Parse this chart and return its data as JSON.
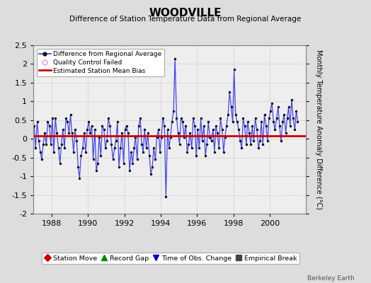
{
  "title": "WOODVILLE",
  "subtitle": "Difference of Station Temperature Data from Regional Average",
  "ylabel_right": "Monthly Temperature Anomaly Difference (°C)",
  "xlim": [
    1987.0,
    2002.0
  ],
  "ylim": [
    -2.0,
    2.5
  ],
  "yticks": [
    -2,
    -1.5,
    -1,
    -0.5,
    0,
    0.5,
    1,
    1.5,
    2,
    2.5
  ],
  "ytick_labels": [
    "-2",
    "-1.5",
    "-1",
    "-0.5",
    "0",
    "0.5",
    "1",
    "1.5",
    "2",
    "2.5"
  ],
  "xticks": [
    1988,
    1990,
    1992,
    1994,
    1996,
    1998,
    2000
  ],
  "bias_line_y": 0.08,
  "bias_line_color": "#cc0000",
  "line_color": "#4444ee",
  "dot_color": "#111111",
  "background_color": "#dddddd",
  "plot_bg_color": "#eeeeee",
  "grid_color": "#bbbbbb",
  "footer": "Berkeley Earth",
  "legend1_entries": [
    {
      "label": "Difference from Regional Average"
    },
    {
      "label": "Quality Control Failed"
    },
    {
      "label": "Estimated Station Mean Bias"
    }
  ],
  "legend2_entries": [
    {
      "label": "Station Move",
      "marker": "D",
      "color": "#cc0000"
    },
    {
      "label": "Record Gap",
      "marker": "^",
      "color": "#008800"
    },
    {
      "label": "Time of Obs. Change",
      "marker": "v",
      "color": "#0000cc"
    },
    {
      "label": "Empirical Break",
      "marker": "s",
      "color": "#444444"
    }
  ],
  "time_series": [
    1987.04,
    1987.12,
    1987.21,
    1987.29,
    1987.38,
    1987.46,
    1987.54,
    1987.62,
    1987.71,
    1987.79,
    1987.88,
    1987.96,
    1988.04,
    1988.12,
    1988.21,
    1988.29,
    1988.38,
    1988.46,
    1988.54,
    1988.62,
    1988.71,
    1988.79,
    1988.88,
    1988.96,
    1989.04,
    1989.12,
    1989.21,
    1989.29,
    1989.38,
    1989.46,
    1989.54,
    1989.62,
    1989.71,
    1989.79,
    1989.88,
    1989.96,
    1990.04,
    1990.12,
    1990.21,
    1990.29,
    1990.38,
    1990.46,
    1990.54,
    1990.62,
    1990.71,
    1990.79,
    1990.88,
    1990.96,
    1991.04,
    1991.12,
    1991.21,
    1991.29,
    1991.38,
    1991.46,
    1991.54,
    1991.62,
    1991.71,
    1991.79,
    1991.88,
    1991.96,
    1992.04,
    1992.12,
    1992.21,
    1992.29,
    1992.38,
    1992.46,
    1992.54,
    1992.62,
    1992.71,
    1992.79,
    1992.88,
    1992.96,
    1993.04,
    1993.12,
    1993.21,
    1993.29,
    1993.38,
    1993.46,
    1993.54,
    1993.62,
    1993.71,
    1993.79,
    1993.88,
    1993.96,
    1994.04,
    1994.12,
    1994.21,
    1994.29,
    1994.38,
    1994.46,
    1994.54,
    1994.62,
    1994.71,
    1994.79,
    1994.88,
    1994.96,
    1995.04,
    1995.12,
    1995.21,
    1995.29,
    1995.38,
    1995.46,
    1995.54,
    1995.62,
    1995.71,
    1995.79,
    1995.88,
    1995.96,
    1996.04,
    1996.12,
    1996.21,
    1996.29,
    1996.38,
    1996.46,
    1996.54,
    1996.62,
    1996.71,
    1996.79,
    1996.88,
    1996.96,
    1997.04,
    1997.12,
    1997.21,
    1997.29,
    1997.38,
    1997.46,
    1997.54,
    1997.62,
    1997.71,
    1997.79,
    1997.88,
    1997.96,
    1998.04,
    1998.12,
    1998.21,
    1998.29,
    1998.38,
    1998.46,
    1998.54,
    1998.62,
    1998.71,
    1998.79,
    1998.88,
    1998.96,
    1999.04,
    1999.12,
    1999.21,
    1999.29,
    1999.38,
    1999.46,
    1999.54,
    1999.62,
    1999.71,
    1999.79,
    1999.88,
    1999.96,
    2000.04,
    2000.12,
    2000.21,
    2000.29,
    2000.38,
    2000.46,
    2000.54,
    2000.62,
    2000.71,
    2000.79,
    2000.88,
    2000.96,
    2001.04,
    2001.12,
    2001.21,
    2001.29,
    2001.38,
    2001.46,
    2001.54
  ],
  "values": [
    0.35,
    -0.25,
    0.45,
    -0.05,
    -0.35,
    -0.55,
    -0.15,
    0.15,
    -0.15,
    0.45,
    0.35,
    -0.15,
    0.55,
    -0.35,
    0.55,
    0.15,
    -0.25,
    -0.65,
    -0.15,
    0.25,
    -0.25,
    0.55,
    0.45,
    0.15,
    0.65,
    0.15,
    -0.35,
    0.25,
    -0.05,
    -0.75,
    -1.05,
    -0.45,
    -0.25,
    0.15,
    -0.35,
    0.25,
    0.45,
    0.15,
    0.35,
    -0.55,
    0.25,
    -0.85,
    -0.65,
    0.05,
    -0.45,
    0.35,
    0.25,
    -0.25,
    -0.05,
    0.55,
    0.35,
    -0.15,
    -0.55,
    -0.25,
    -0.05,
    0.45,
    -0.75,
    -0.25,
    0.15,
    -0.65,
    0.25,
    0.35,
    0.15,
    -0.85,
    -0.35,
    -0.65,
    -0.25,
    0.05,
    -0.55,
    0.35,
    0.55,
    -0.15,
    -0.35,
    0.25,
    -0.25,
    0.15,
    -0.45,
    -0.95,
    -0.75,
    -0.25,
    -0.55,
    0.05,
    0.25,
    -0.35,
    0.05,
    0.55,
    0.35,
    -1.55,
    0.25,
    -0.25,
    0.05,
    0.45,
    0.75,
    2.15,
    0.55,
    0.15,
    -0.15,
    0.55,
    0.45,
    0.05,
    0.35,
    -0.35,
    -0.15,
    0.15,
    -0.25,
    0.55,
    0.35,
    -0.45,
    0.25,
    -0.25,
    0.55,
    -0.05,
    0.35,
    -0.45,
    -0.15,
    0.45,
    0.05,
    -0.05,
    0.25,
    -0.35,
    0.35,
    0.15,
    -0.25,
    0.55,
    0.25,
    -0.35,
    0.05,
    0.35,
    0.65,
    1.25,
    0.85,
    0.45,
    1.85,
    0.65,
    0.45,
    0.25,
    -0.05,
    -0.25,
    0.55,
    0.35,
    -0.15,
    0.45,
    0.15,
    -0.15,
    0.35,
    -0.05,
    0.55,
    0.25,
    -0.25,
    -0.05,
    0.45,
    -0.15,
    0.65,
    0.35,
    -0.05,
    0.55,
    0.75,
    0.95,
    0.45,
    0.25,
    0.55,
    0.85,
    0.35,
    -0.05,
    0.45,
    0.65,
    0.15,
    0.55,
    0.85,
    0.35,
    1.05,
    0.55,
    0.25,
    0.75,
    0.45
  ]
}
